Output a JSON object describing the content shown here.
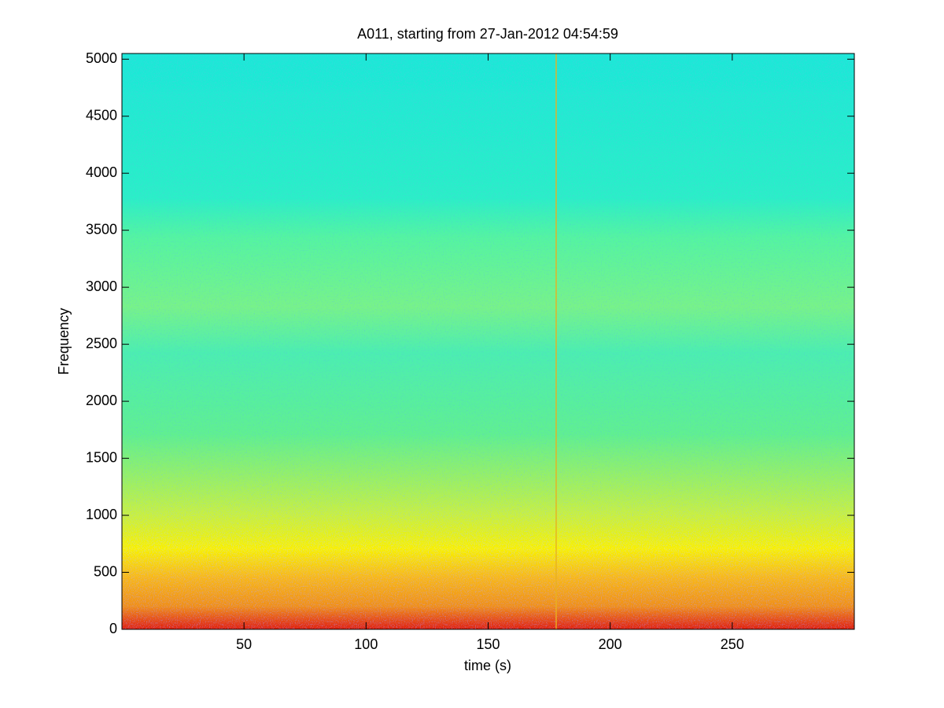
{
  "chart_data": {
    "type": "spectrogram",
    "title": "A011, starting from 27-Jan-2012 04:54:59",
    "xlabel": "time (s)",
    "ylabel": "Frequency",
    "xlim": [
      0,
      300
    ],
    "xticks": [
      50,
      100,
      150,
      200,
      250
    ],
    "ylim": [
      0,
      5050
    ],
    "yticks": [
      0,
      500,
      1000,
      1500,
      2000,
      2500,
      3000,
      3500,
      4000,
      4500,
      5000
    ]
  }
}
